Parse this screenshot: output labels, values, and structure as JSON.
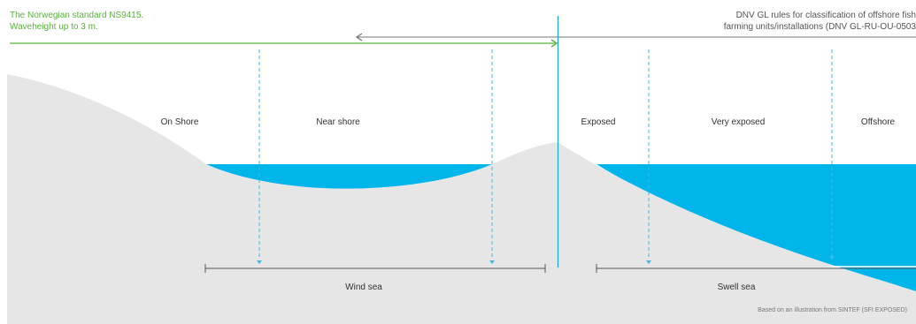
{
  "standards": {
    "norwegian": {
      "line1": "The Norwegian standard NS9415.",
      "line2": "Waveheight up to 3 m."
    },
    "dnv": {
      "line1": "DNV GL rules for classification of offshore fish",
      "line2": "farming units/installations (DNV GL-RU-OU-0503"
    }
  },
  "zones": [
    {
      "id": "on-shore",
      "label": "On Shore"
    },
    {
      "id": "near-shore",
      "label": "Near shore"
    },
    {
      "id": "exposed",
      "label": "Exposed"
    },
    {
      "id": "very-exposed",
      "label": "Very exposed"
    },
    {
      "id": "offshore",
      "label": "Offshore"
    }
  ],
  "sea_types": {
    "wind": "Wind sea",
    "swell": "Swell sea"
  },
  "credit": "Based on an illustration from  SINTEF (SFI EXPOSED)",
  "colors": {
    "water": "#00b5ea",
    "land": "#e6e6e6",
    "green": "#5ab33a",
    "divider": "#1aa3d9",
    "dashed": "#3bbbe8",
    "scale": "#555555"
  }
}
